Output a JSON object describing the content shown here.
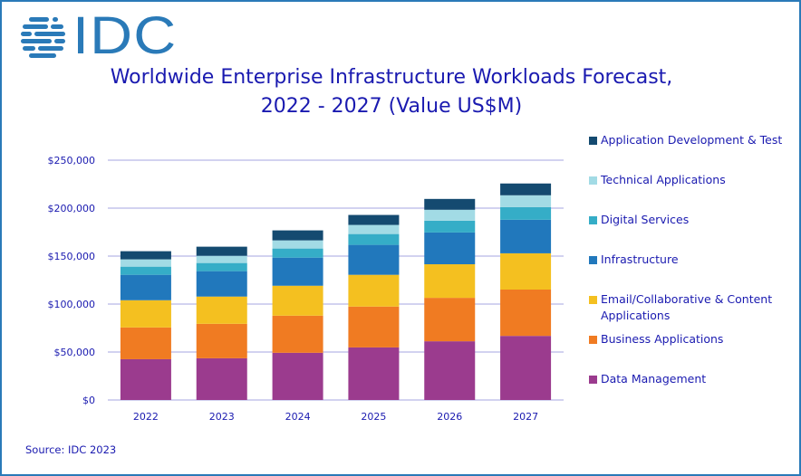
{
  "logo": {
    "text": "IDC",
    "color": "#2a7ab8"
  },
  "title_lines": [
    "Worldwide Enterprise Infrastructure Workloads Forecast,",
    "2022 - 2027 (Value US$M)"
  ],
  "source": "Source: IDC 2023",
  "chart_data": {
    "type": "bar",
    "stacked": true,
    "title": "Worldwide Enterprise Infrastructure Workloads Forecast, 2022 - 2027 (Value US$M)",
    "xlabel": "",
    "ylabel": "",
    "categories": [
      "2022",
      "2023",
      "2024",
      "2025",
      "2026",
      "2027"
    ],
    "ylim": [
      0,
      250000
    ],
    "yticks": [
      0,
      50000,
      100000,
      150000,
      200000,
      250000
    ],
    "ytick_labels": [
      "$0",
      "$50,000",
      "$100,000",
      "$150,000",
      "$200,000",
      "$250,000"
    ],
    "grid": true,
    "legend_position": "right",
    "series": [
      {
        "name": "Data Management",
        "color": "#9b3b8e",
        "values": [
          42500,
          43500,
          49200,
          54800,
          61200,
          66800
        ]
      },
      {
        "name": "Business Applications",
        "color": "#f07b22",
        "values": [
          33100,
          35900,
          38700,
          42600,
          45300,
          48300
        ]
      },
      {
        "name": "Email/Collaborative & Content Applications",
        "color": "#f4c020",
        "values": [
          28400,
          28400,
          31200,
          33100,
          35000,
          37800
        ]
      },
      {
        "name": "Infrastructure",
        "color": "#2178bc",
        "values": [
          26500,
          26500,
          29300,
          31200,
          33100,
          35000
        ]
      },
      {
        "name": "Digital Services",
        "color": "#35adc7",
        "values": [
          8500,
          8500,
          9500,
          11300,
          12300,
          13200
        ]
      },
      {
        "name": "Technical Applications",
        "color": "#a2dbe5",
        "values": [
          7600,
          7500,
          8500,
          9500,
          11400,
          12300
        ]
      },
      {
        "name": "Application Development & Test",
        "color": "#144a70",
        "values": [
          8500,
          9500,
          10400,
          10400,
          11300,
          12300
        ]
      }
    ]
  },
  "legend": [
    {
      "label": "Application Development & Test",
      "color": "#144a70"
    },
    {
      "label": "Technical Applications",
      "color": "#a2dbe5"
    },
    {
      "label": "Digital Services",
      "color": "#35adc7"
    },
    {
      "label": "Infrastructure",
      "color": "#2178bc"
    },
    {
      "label": "Email/Collaborative & Content Applications",
      "color": "#f4c020"
    },
    {
      "label": "Business Applications",
      "color": "#f07b22"
    },
    {
      "label": "Data Management",
      "color": "#9b3b8e"
    }
  ]
}
